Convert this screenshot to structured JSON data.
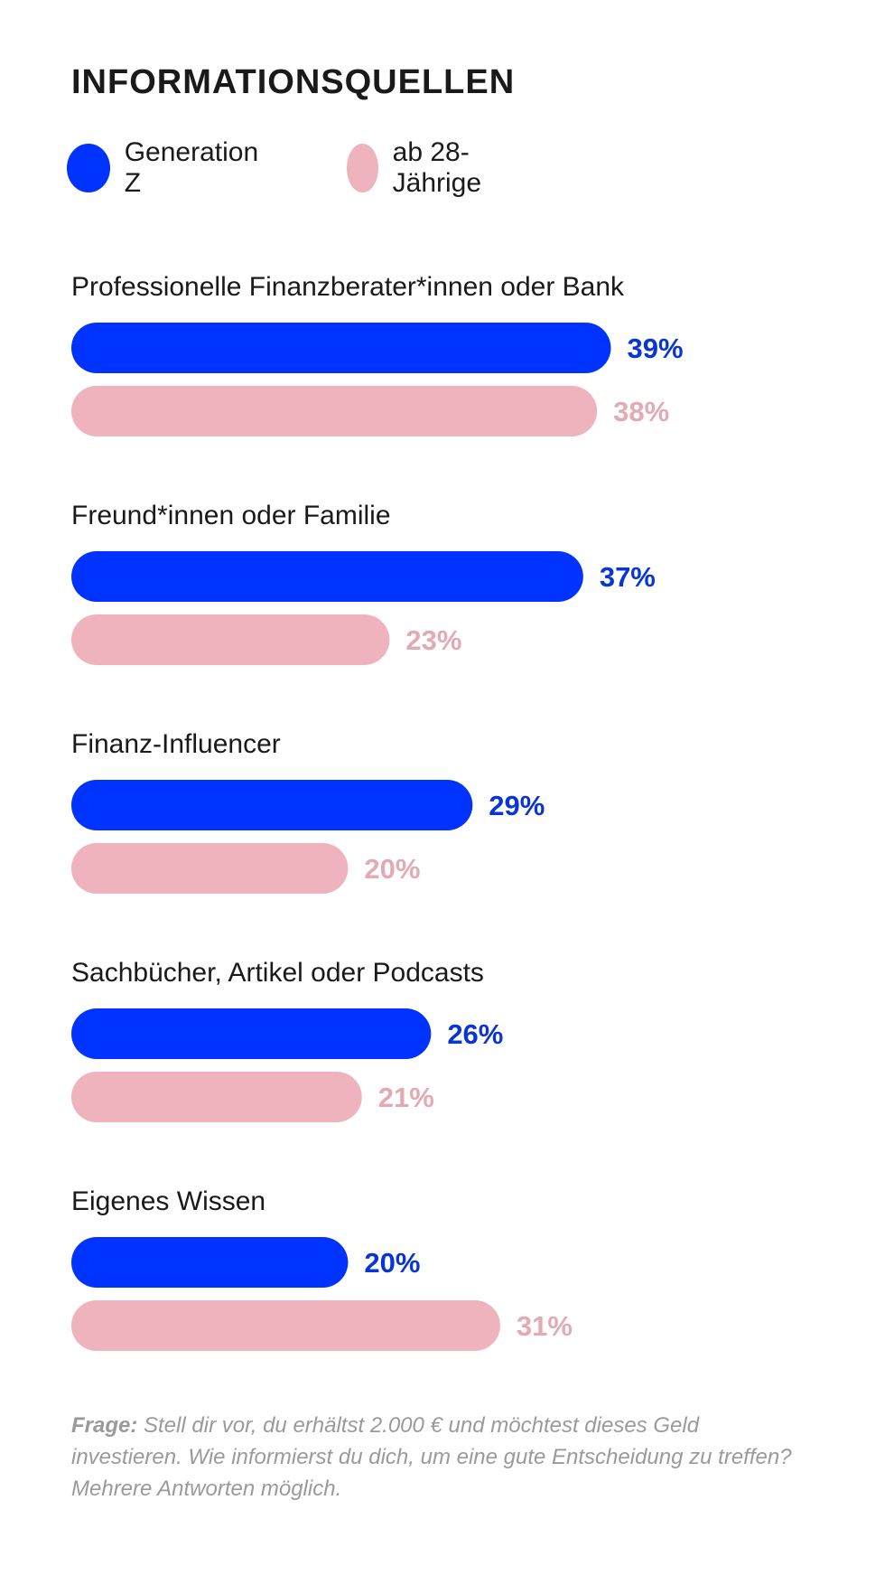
{
  "title": "INFORMATIONSQUELLEN",
  "colors": {
    "gen_z": "#0033ff",
    "gen_z_label": "#0a35d6",
    "older": "#efb3bd",
    "older_label": "#e2aab4",
    "text": "#1a1a1a",
    "note": "#9a9a9a"
  },
  "footnote": {
    "lead": "Frage:",
    "text": "Stell dir vor, du erhältst 2.000 € und möchtest dieses Geld investieren. Wie informierst du dich, um eine gute Entscheidung zu treffen? Mehrere Antworten möglich."
  },
  "chart_data": {
    "type": "bar",
    "orientation": "horizontal",
    "title": "INFORMATIONSQUELLEN",
    "legend": "top-left",
    "grid": false,
    "unit": "%",
    "categories": [
      "Professionelle Finanzberater*innen oder Bank",
      "Freund*innen oder Familie",
      "Finanz-Influencer",
      "Sachbücher, Artikel oder Podcasts",
      "Eigenes Wissen"
    ],
    "series": [
      {
        "name": "Generation Z",
        "values": [
          39,
          37,
          29,
          26,
          20
        ],
        "labels": [
          "39%",
          "37%",
          "29%",
          "26%",
          "20%"
        ]
      },
      {
        "name": "ab 28-Jährige",
        "values": [
          38,
          23,
          20,
          21,
          31
        ],
        "labels": [
          "38%",
          "23%",
          "20%",
          "21%",
          "31%"
        ]
      }
    ],
    "xlim": [
      0,
      40
    ]
  }
}
